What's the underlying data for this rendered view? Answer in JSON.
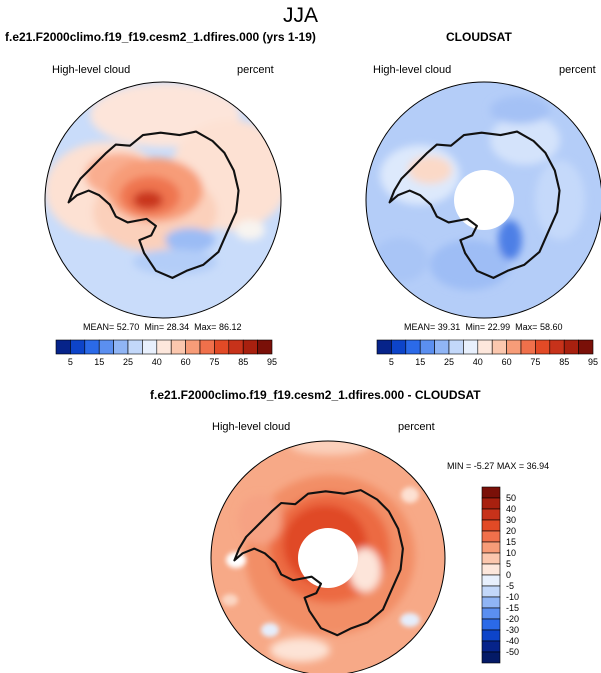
{
  "page": {
    "title": "JJA"
  },
  "chart_data": [
    {
      "type": "heatmap",
      "projection": "south-polar-stereographic",
      "title": "f.e21.F2000climo.f19_f19.cesm2_1.dfires.000 (yrs 1-19)",
      "left_label": "High-level cloud",
      "right_label": "percent",
      "stats": {
        "mean_label": "MEAN=",
        "mean": "52.70",
        "min_label": "Min=",
        "min": "28.34",
        "max_label": "Max=",
        "max": "86.12"
      },
      "colorbar": {
        "orientation": "horizontal",
        "labels": [
          "5",
          "15",
          "25",
          "40",
          "60",
          "75",
          "85",
          "95"
        ],
        "colors": [
          "#06238a",
          "#0d44c9",
          "#2b6ae8",
          "#5b8ff0",
          "#90b5f5",
          "#c3d8fa",
          "#e8f0fd",
          "#fde7dc",
          "#fbc7ae",
          "#f79c78",
          "#f0704b",
          "#e24a26",
          "#c7321a",
          "#a8200f",
          "#7a1008"
        ]
      }
    },
    {
      "type": "heatmap",
      "projection": "south-polar-stereographic",
      "title": "CLOUDSAT",
      "left_label": "High-level cloud",
      "right_label": "percent",
      "stats": {
        "mean_label": "MEAN=",
        "mean": "39.31",
        "min_label": "Min=",
        "min": "22.99",
        "max_label": "Max=",
        "max": "58.60"
      },
      "colorbar": {
        "orientation": "horizontal",
        "labels": [
          "5",
          "15",
          "25",
          "40",
          "60",
          "75",
          "85",
          "95"
        ],
        "colors": [
          "#06238a",
          "#0d44c9",
          "#2b6ae8",
          "#5b8ff0",
          "#90b5f5",
          "#c3d8fa",
          "#e8f0fd",
          "#fde7dc",
          "#fbc7ae",
          "#f79c78",
          "#f0704b",
          "#e24a26",
          "#c7321a",
          "#a8200f",
          "#7a1008"
        ]
      }
    },
    {
      "type": "heatmap",
      "projection": "south-polar-stereographic",
      "title": "f.e21.F2000climo.f19_f19.cesm2_1.dfires.000 - CLOUDSAT",
      "left_label": "High-level cloud",
      "right_label": "percent",
      "stats": {
        "min_label": "MIN =",
        "min": "-5.27",
        "max_label": "MAX =",
        "max": "36.94"
      },
      "colorbar": {
        "orientation": "vertical",
        "labels": [
          "50",
          "40",
          "30",
          "20",
          "15",
          "10",
          "5",
          "0",
          "-5",
          "-10",
          "-15",
          "-20",
          "-30",
          "-40",
          "-50"
        ],
        "colors": [
          "#7a1008",
          "#a8200f",
          "#c7321a",
          "#e24a26",
          "#f0704b",
          "#f79c78",
          "#fbc7ae",
          "#fde7dc",
          "#e8f0fd",
          "#c3d8fa",
          "#90b5f5",
          "#5b8ff0",
          "#2b6ae8",
          "#0d44c9",
          "#06238a",
          "#041a66"
        ]
      }
    }
  ]
}
